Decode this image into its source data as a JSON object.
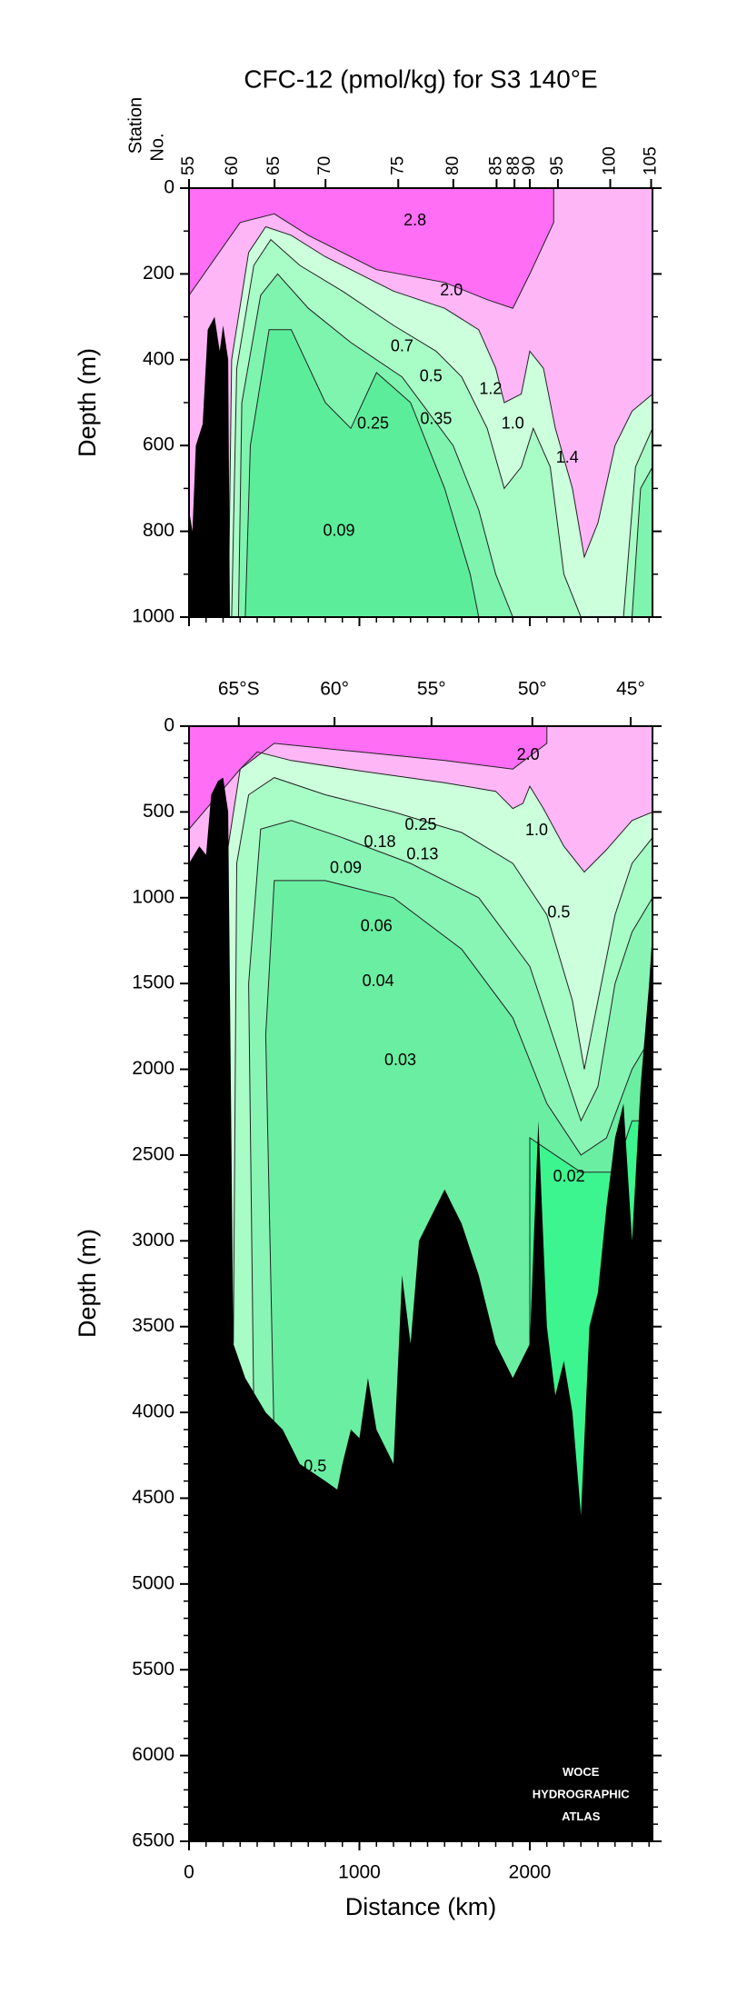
{
  "title": "CFC-12 (pmol/kg) for S3 140°E",
  "top_panel": {
    "station_axis_label": [
      "Station",
      "No."
    ],
    "stations": [
      {
        "value": 0,
        "label": "55"
      },
      {
        "value": 255,
        "label": "60"
      },
      {
        "value": 502,
        "label": "65"
      },
      {
        "value": 801,
        "label": "70"
      },
      {
        "value": 1228,
        "label": "75"
      },
      {
        "value": 1551,
        "label": "80"
      },
      {
        "value": 1805,
        "label": "85"
      },
      {
        "value": 1910,
        "label": "88"
      },
      {
        "value": 2000,
        "label": "90"
      },
      {
        "value": 2165,
        "label": "95"
      },
      {
        "value": 2472,
        "label": "100"
      },
      {
        "value": 2712,
        "label": "105"
      }
    ],
    "ylabel": "Depth (m)",
    "xlim": [
      0,
      2720
    ],
    "ylim": [
      0,
      1000
    ],
    "yticks": [
      0,
      200,
      400,
      600,
      800,
      1000
    ],
    "contour_labels": [
      "2.8",
      "2.0",
      "0.7",
      "0.5",
      "1.2",
      "0.35",
      "1.0",
      "0.25",
      "1.4",
      "0.09"
    ]
  },
  "bottom_panel": {
    "latitude_ticks": [
      {
        "value": 292,
        "label": "65°S"
      },
      {
        "value": 854,
        "label": "60°"
      },
      {
        "value": 1423,
        "label": "55°"
      },
      {
        "value": 2015,
        "label": "50°"
      },
      {
        "value": 2592,
        "label": "45°"
      }
    ],
    "ylabel": "Depth (m)",
    "xlabel": "Distance (km)",
    "xlim": [
      0,
      2720
    ],
    "ylim": [
      0,
      6500
    ],
    "xticks": [
      0,
      1000,
      2000
    ],
    "yticks": [
      0,
      500,
      1000,
      1500,
      2000,
      2500,
      3000,
      3500,
      4000,
      4500,
      5000,
      5500,
      6000,
      6500
    ],
    "contour_labels": [
      "2.0",
      "1.0",
      "0.25",
      "0.18",
      "0.13",
      "0.09",
      "0.5",
      "0.06",
      "0.04",
      "0.03",
      "0.02",
      "0.5"
    ],
    "logo": [
      "WOCE",
      "HYDROGRAPHIC",
      "ATLAS"
    ]
  }
}
